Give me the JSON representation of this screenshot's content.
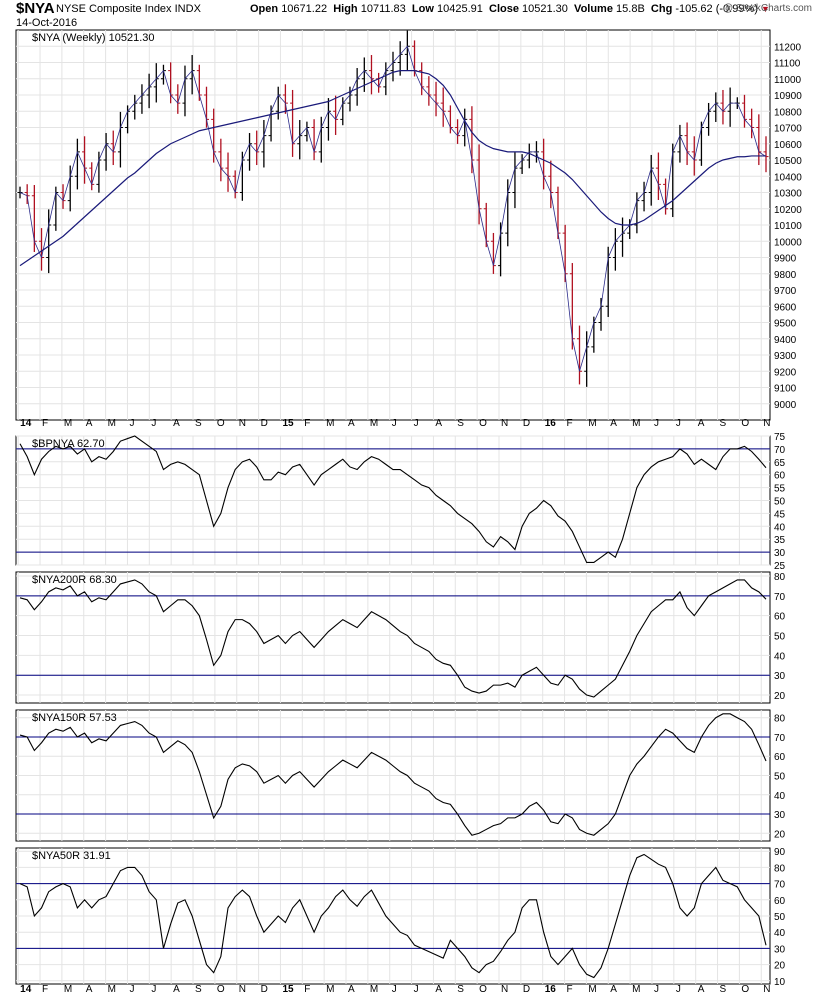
{
  "header": {
    "symbol": "$NYA",
    "name": "NYSE Composite Index",
    "exchange": "INDX",
    "date": "14-Oct-2016",
    "open_label": "Open",
    "open": "10671.22",
    "high_label": "High",
    "high": "10711.83",
    "low_label": "Low",
    "low": "10425.91",
    "close_label": "Close",
    "close": "10521.30",
    "volume_label": "Volume",
    "volume": "15.8B",
    "chg_label": "Chg",
    "chg": "-105.62 (-0.99%)",
    "credit": "@ StockCharts.com"
  },
  "colors": {
    "ma": "#1a1a7a",
    "down_bar": "#b01020",
    "up_bar": "#000000",
    "hline": "#000080",
    "grid": "#e4e4e4"
  },
  "chart_data": [
    {
      "type": "ohlc",
      "legend": "$NYA (Weekly) 10521.30",
      "ylim": [
        8900,
        11300
      ],
      "yticks": [
        9000,
        9100,
        9200,
        9300,
        9400,
        9500,
        9600,
        9700,
        9800,
        9900,
        10000,
        10100,
        10200,
        10300,
        10400,
        10500,
        10600,
        10700,
        10800,
        10900,
        11000,
        11100,
        11200
      ],
      "x_labels": [
        "14",
        "F",
        "M",
        "A",
        "M",
        "J",
        "J",
        "A",
        "S",
        "O",
        "N",
        "D",
        "15",
        "F",
        "M",
        "A",
        "M",
        "J",
        "J",
        "A",
        "S",
        "O",
        "N",
        "D",
        "16",
        "F",
        "M",
        "A",
        "M",
        "J",
        "J",
        "A",
        "S",
        "O",
        "N"
      ],
      "close": [
        10300,
        10280,
        10000,
        9900,
        10100,
        10300,
        10250,
        10400,
        10550,
        10450,
        10350,
        10500,
        10600,
        10550,
        10700,
        10800,
        10850,
        10900,
        10950,
        11000,
        11050,
        10900,
        10850,
        11000,
        11050,
        10900,
        10750,
        10550,
        10450,
        10400,
        10300,
        10500,
        10600,
        10550,
        10650,
        10800,
        10900,
        10850,
        10600,
        10650,
        10700,
        10550,
        10700,
        10800,
        10750,
        10850,
        10900,
        11000,
        11050,
        11000,
        10950,
        11050,
        11100,
        11150,
        11200,
        11050,
        10950,
        10900,
        10850,
        10800,
        10700,
        10650,
        10750,
        10500,
        10200,
        10000,
        9850,
        10050,
        10300,
        10450,
        10500,
        10550,
        10550,
        10400,
        10300,
        10050,
        9800,
        9400,
        9200,
        9350,
        9500,
        9600,
        9900,
        10000,
        10050,
        10100,
        10250,
        10300,
        10450,
        10350,
        10200,
        10550,
        10650,
        10550,
        10500,
        10700,
        10800,
        10850,
        10800,
        10850,
        10850,
        10750,
        10700,
        10550,
        10521
      ],
      "ma": [
        9850,
        9880,
        9910,
        9940,
        9970,
        10000,
        10030,
        10070,
        10110,
        10150,
        10190,
        10230,
        10270,
        10310,
        10350,
        10390,
        10420,
        10460,
        10500,
        10540,
        10570,
        10600,
        10620,
        10640,
        10660,
        10680,
        10690,
        10700,
        10710,
        10720,
        10730,
        10740,
        10750,
        10760,
        10770,
        10780,
        10790,
        10800,
        10810,
        10820,
        10830,
        10840,
        10850,
        10860,
        10880,
        10900,
        10920,
        10940,
        10960,
        10980,
        11000,
        11020,
        11040,
        11050,
        11050,
        11050,
        11040,
        11030,
        11000,
        10960,
        10900,
        10820,
        10740,
        10670,
        10620,
        10590,
        10570,
        10560,
        10550,
        10550,
        10550,
        10540,
        10520,
        10500,
        10480,
        10450,
        10420,
        10380,
        10330,
        10280,
        10230,
        10180,
        10140,
        10110,
        10100,
        10100,
        10110,
        10130,
        10160,
        10190,
        10220,
        10250,
        10290,
        10330,
        10370,
        10410,
        10450,
        10480,
        10500,
        10510,
        10520,
        10520,
        10525,
        10525,
        10525
      ]
    },
    {
      "type": "line",
      "legend": "$BPNYA 62.70",
      "ylim": [
        25,
        75
      ],
      "yticks": [
        25,
        30,
        35,
        40,
        45,
        50,
        55,
        60,
        65,
        70,
        75
      ],
      "hlines": [
        70,
        30
      ],
      "values": [
        72,
        67,
        60,
        66,
        69,
        71,
        70,
        71,
        68,
        70,
        65,
        67,
        66,
        69,
        73,
        74,
        75,
        73,
        71,
        69,
        62,
        64,
        65,
        64,
        62,
        60,
        50,
        40,
        45,
        55,
        62,
        65,
        66,
        63,
        58,
        58,
        61,
        60,
        63,
        64,
        60,
        56,
        60,
        62,
        64,
        66,
        63,
        62,
        65,
        67,
        66,
        64,
        62,
        62,
        60,
        58,
        56,
        55,
        52,
        50,
        48,
        45,
        43,
        41,
        38,
        34,
        32,
        36,
        34,
        31,
        40,
        45,
        47,
        50,
        48,
        44,
        42,
        38,
        32,
        26,
        26,
        28,
        30,
        28,
        35,
        45,
        55,
        60,
        63,
        65,
        66,
        67,
        70,
        68,
        64,
        66,
        64,
        62,
        67,
        70,
        70,
        71,
        69,
        66,
        62.7
      ]
    },
    {
      "type": "line",
      "legend": "$NYA200R 68.30",
      "ylim": [
        16,
        82
      ],
      "yticks": [
        20,
        30,
        40,
        50,
        60,
        70,
        80
      ],
      "hlines": [
        70,
        30
      ],
      "values": [
        69,
        68,
        63,
        67,
        72,
        74,
        73,
        75,
        70,
        72,
        67,
        69,
        68,
        72,
        76,
        77,
        78,
        76,
        72,
        70,
        62,
        65,
        68,
        68,
        65,
        60,
        48,
        35,
        40,
        52,
        58,
        58,
        56,
        52,
        46,
        48,
        50,
        46,
        50,
        52,
        48,
        44,
        48,
        52,
        55,
        58,
        56,
        54,
        58,
        62,
        60,
        58,
        55,
        52,
        50,
        46,
        44,
        42,
        38,
        36,
        35,
        30,
        24,
        22,
        21,
        22,
        25,
        25,
        26,
        24,
        30,
        32,
        34,
        30,
        26,
        25,
        30,
        28,
        23,
        20,
        19,
        22,
        25,
        28,
        35,
        42,
        50,
        56,
        62,
        65,
        68,
        68,
        72,
        64,
        60,
        65,
        70,
        72,
        74,
        76,
        78,
        78,
        74,
        72,
        68.3
      ]
    },
    {
      "type": "line",
      "legend": "$NYA150R 57.53",
      "ylim": [
        16,
        84
      ],
      "yticks": [
        20,
        30,
        40,
        50,
        60,
        70,
        80
      ],
      "hlines": [
        70,
        30
      ],
      "values": [
        71,
        70,
        63,
        67,
        72,
        74,
        73,
        75,
        70,
        72,
        67,
        69,
        68,
        72,
        76,
        77,
        78,
        76,
        72,
        70,
        62,
        65,
        68,
        66,
        62,
        52,
        40,
        28,
        34,
        48,
        54,
        56,
        55,
        52,
        46,
        48,
        50,
        46,
        50,
        52,
        48,
        44,
        48,
        52,
        55,
        58,
        56,
        54,
        58,
        62,
        60,
        58,
        55,
        52,
        50,
        46,
        44,
        42,
        38,
        36,
        35,
        30,
        24,
        19,
        20,
        22,
        24,
        25,
        28,
        28,
        30,
        34,
        36,
        32,
        26,
        25,
        30,
        28,
        22,
        20,
        19,
        22,
        25,
        30,
        40,
        50,
        56,
        60,
        65,
        70,
        74,
        72,
        68,
        64,
        62,
        70,
        76,
        80,
        82,
        82,
        80,
        78,
        74,
        66,
        57.53
      ]
    },
    {
      "type": "line",
      "legend": "$NYA50R 31.91",
      "ylim": [
        8,
        92
      ],
      "yticks": [
        10,
        20,
        30,
        40,
        50,
        60,
        70,
        80,
        90
      ],
      "hlines": [
        70,
        30
      ],
      "values": [
        70,
        68,
        50,
        55,
        65,
        68,
        70,
        68,
        55,
        60,
        55,
        60,
        62,
        70,
        78,
        80,
        80,
        75,
        65,
        60,
        30,
        45,
        58,
        60,
        50,
        35,
        20,
        15,
        25,
        55,
        62,
        66,
        62,
        50,
        40,
        45,
        50,
        46,
        55,
        60,
        50,
        40,
        50,
        55,
        62,
        66,
        60,
        56,
        62,
        66,
        58,
        50,
        45,
        40,
        38,
        32,
        30,
        28,
        26,
        24,
        35,
        30,
        25,
        18,
        15,
        20,
        22,
        28,
        35,
        40,
        55,
        60,
        60,
        40,
        25,
        20,
        25,
        30,
        20,
        14,
        12,
        18,
        30,
        45,
        60,
        75,
        86,
        88,
        85,
        82,
        80,
        70,
        55,
        50,
        55,
        70,
        75,
        80,
        72,
        70,
        68,
        60,
        55,
        50,
        31.91
      ]
    }
  ]
}
